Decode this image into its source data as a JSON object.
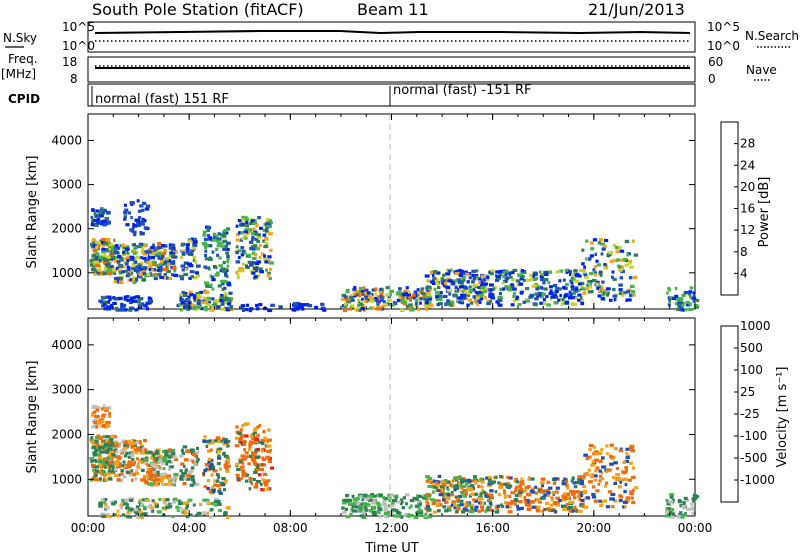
{
  "header": {
    "station": "South Pole Station (fitACF)",
    "beam": "Beam 11",
    "date": "21/Jun/2013"
  },
  "side_labels": {
    "nsky": "N.Sky",
    "freq": "Freq.",
    "mhz": "[MHz]",
    "cpid": "CPID",
    "nsearch": "N.Search",
    "nave": "Nave"
  },
  "mini_ticks": {
    "nsky_top": "10^5",
    "nsky_bottom": "10^0",
    "freq_top": "18",
    "freq_bottom": "8",
    "nave_top": "60",
    "nave_bottom": "0"
  },
  "cpid": {
    "seg1": "normal (fast) 151 RF",
    "seg2": "normal (fast) -151 RF"
  },
  "colors": {
    "power": [
      "#0022ee",
      "#1e4fb8",
      "#2e7f58",
      "#47b34a",
      "#c8d230",
      "#f5a21a",
      "#f26a0c",
      "#e8200c"
    ],
    "velocity": [
      "#e8200c",
      "#f26a0c",
      "#f5a21a",
      "#c0c0c0",
      "#47b34a",
      "#2e7f58",
      "#1e4fb8",
      "#2a2aee"
    ]
  },
  "chart_data": [
    {
      "type": "heatmap",
      "ylabel": "Slant Range [km]",
      "colorbar_label": "Power [dB]",
      "colorbar_ticks": [
        "4",
        "8",
        "12",
        "16",
        "20",
        "24",
        "28"
      ],
      "x_ticks": [
        "00:00",
        "04:00",
        "08:00",
        "12:00",
        "16:00",
        "20:00",
        "00:00"
      ],
      "y_ticks": [
        "1000",
        "2000",
        "3000",
        "4000"
      ],
      "ylim": [
        180,
        4600
      ],
      "xlim_hours": [
        0,
        24
      ],
      "clim": [
        0,
        32
      ],
      "value_bins": [
        2,
        6,
        10,
        14,
        18,
        22,
        26,
        30
      ],
      "blobs": [
        {
          "t0": 0.05,
          "t1": 1.0,
          "r0": 1000,
          "r1": 1800,
          "n": 160,
          "p": [
            0,
            1,
            2,
            2,
            3,
            4,
            5,
            6
          ]
        },
        {
          "t0": 0.1,
          "t1": 0.8,
          "r0": 2100,
          "r1": 2500,
          "n": 40,
          "p": [
            0,
            0,
            1,
            1,
            2
          ]
        },
        {
          "t0": 1.0,
          "t1": 2.2,
          "r0": 800,
          "r1": 1700,
          "n": 130,
          "p": [
            0,
            1,
            1,
            2,
            3,
            4,
            5
          ]
        },
        {
          "t0": 1.3,
          "t1": 2.3,
          "r0": 1900,
          "r1": 2700,
          "n": 45,
          "p": [
            0,
            0,
            1,
            1
          ]
        },
        {
          "t0": 2.2,
          "t1": 3.4,
          "r0": 900,
          "r1": 1700,
          "n": 130,
          "p": [
            0,
            1,
            1,
            2,
            3,
            4,
            5,
            6
          ]
        },
        {
          "t0": 3.6,
          "t1": 4.3,
          "r0": 900,
          "r1": 1800,
          "n": 50,
          "p": [
            0,
            1,
            1,
            2,
            4
          ]
        },
        {
          "t0": 4.5,
          "t1": 5.5,
          "r0": 600,
          "r1": 2100,
          "n": 90,
          "p": [
            0,
            1,
            2,
            3
          ]
        },
        {
          "t0": 5.8,
          "t1": 7.2,
          "r0": 900,
          "r1": 2300,
          "n": 140,
          "p": [
            0,
            1,
            2,
            3,
            4,
            5
          ]
        },
        {
          "t0": 0.4,
          "t1": 2.5,
          "r0": 180,
          "r1": 500,
          "n": 70,
          "p": [
            0,
            0,
            1,
            2
          ]
        },
        {
          "t0": 3.5,
          "t1": 5.6,
          "r0": 180,
          "r1": 600,
          "n": 110,
          "p": [
            0,
            1,
            2,
            3,
            4,
            5
          ]
        },
        {
          "t0": 6.0,
          "t1": 9.5,
          "r0": 180,
          "r1": 350,
          "n": 40,
          "p": [
            0,
            0,
            1
          ]
        },
        {
          "t0": 10.0,
          "t1": 13.5,
          "r0": 180,
          "r1": 700,
          "n": 180,
          "p": [
            0,
            1,
            2,
            3,
            4,
            5,
            6
          ]
        },
        {
          "t0": 13.3,
          "t1": 15.8,
          "r0": 300,
          "r1": 1100,
          "n": 200,
          "p": [
            0,
            0,
            1,
            2,
            3,
            4,
            5
          ]
        },
        {
          "t0": 15.8,
          "t1": 19.5,
          "r0": 300,
          "r1": 1100,
          "n": 220,
          "p": [
            0,
            0,
            1,
            2,
            3,
            4
          ]
        },
        {
          "t0": 19.5,
          "t1": 21.6,
          "r0": 400,
          "r1": 1800,
          "n": 130,
          "p": [
            0,
            1,
            2,
            3,
            4,
            5
          ]
        },
        {
          "t0": 22.8,
          "t1": 24.0,
          "r0": 180,
          "r1": 700,
          "n": 50,
          "p": [
            0,
            1,
            2,
            3
          ]
        }
      ]
    },
    {
      "type": "heatmap",
      "ylabel": "Slant Range [km]",
      "colorbar_label": "Velocity [m s⁻¹]",
      "colorbar_ticks": [
        "-1000",
        "-500",
        "-100",
        "-25",
        "25",
        "100",
        "500",
        "1000"
      ],
      "x_ticks": [
        "00:00",
        "04:00",
        "08:00",
        "12:00",
        "16:00",
        "20:00",
        "00:00"
      ],
      "y_ticks": [
        "1000",
        "2000",
        "3000",
        "4000"
      ],
      "ylim": [
        180,
        4600
      ],
      "xlim_hours": [
        0,
        24
      ],
      "xlabel": "Time UT",
      "value_bins": [
        -1000,
        -500,
        -100,
        -25,
        25,
        100,
        500,
        1000
      ],
      "blobs": [
        {
          "t0": 0.05,
          "t1": 1.0,
          "r0": 1000,
          "r1": 2000,
          "n": 160,
          "p": [
            4,
            5,
            5,
            2,
            1
          ]
        },
        {
          "t0": 0.1,
          "t1": 0.8,
          "r0": 2200,
          "r1": 2700,
          "n": 40,
          "p": [
            1,
            2,
            1,
            3
          ]
        },
        {
          "t0": 1.0,
          "t1": 2.2,
          "r0": 1000,
          "r1": 1900,
          "n": 130,
          "p": [
            1,
            2,
            1,
            5,
            3
          ]
        },
        {
          "t0": 2.2,
          "t1": 3.4,
          "r0": 900,
          "r1": 1700,
          "n": 130,
          "p": [
            5,
            4,
            1,
            2,
            3
          ]
        },
        {
          "t0": 3.6,
          "t1": 4.3,
          "r0": 900,
          "r1": 1800,
          "n": 50,
          "p": [
            5,
            5,
            3,
            1
          ]
        },
        {
          "t0": 4.5,
          "t1": 5.5,
          "r0": 700,
          "r1": 2000,
          "n": 90,
          "p": [
            1,
            2,
            5,
            6
          ]
        },
        {
          "t0": 5.8,
          "t1": 7.2,
          "r0": 800,
          "r1": 2300,
          "n": 140,
          "p": [
            1,
            1,
            2,
            0,
            5
          ]
        },
        {
          "t0": 0.4,
          "t1": 5.5,
          "r0": 180,
          "r1": 600,
          "n": 140,
          "p": [
            4,
            5,
            5,
            3,
            2
          ]
        },
        {
          "t0": 10.0,
          "t1": 13.5,
          "r0": 180,
          "r1": 700,
          "n": 180,
          "p": [
            4,
            5,
            5,
            4,
            3
          ]
        },
        {
          "t0": 13.3,
          "t1": 15.8,
          "r0": 300,
          "r1": 1100,
          "n": 200,
          "p": [
            5,
            6,
            1,
            2,
            4
          ]
        },
        {
          "t0": 15.8,
          "t1": 19.5,
          "r0": 300,
          "r1": 1100,
          "n": 220,
          "p": [
            1,
            2,
            6,
            5,
            1
          ]
        },
        {
          "t0": 19.5,
          "t1": 21.6,
          "r0": 400,
          "r1": 1800,
          "n": 130,
          "p": [
            1,
            2,
            1,
            6,
            2
          ]
        },
        {
          "t0": 22.8,
          "t1": 24.0,
          "r0": 180,
          "r1": 700,
          "n": 50,
          "p": [
            5,
            5,
            4,
            3
          ]
        }
      ]
    }
  ]
}
